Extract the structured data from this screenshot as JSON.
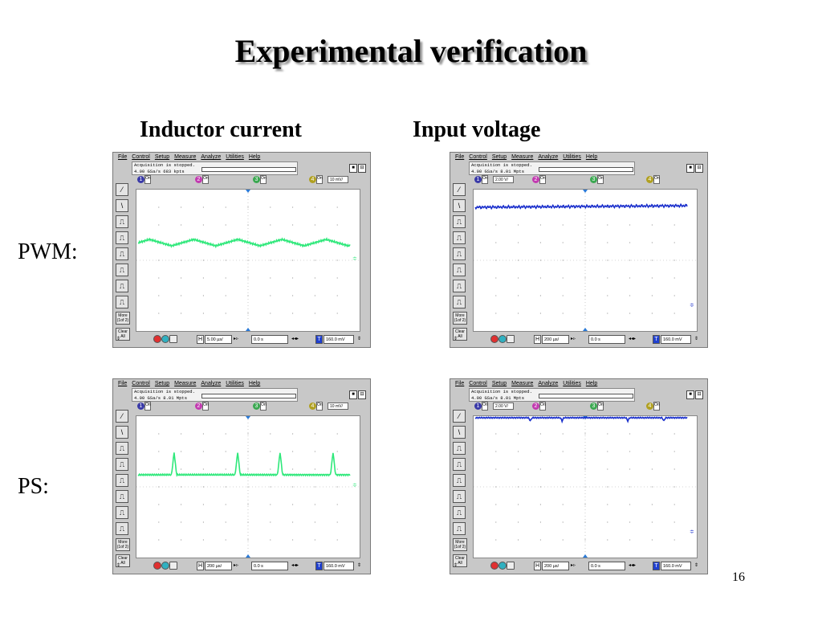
{
  "slide": {
    "title": "Experimental verification",
    "col_left": "Inductor current",
    "col_right": "Input voltage",
    "row_top": "PWM:",
    "row_bottom": "PS:",
    "page_number": "16"
  },
  "scope_ui": {
    "menu": [
      "File",
      "Control",
      "Setup",
      "Measure",
      "Analyze",
      "Utilities",
      "Help"
    ],
    "status_line1": "Acquisition is stopped.",
    "channel_labels": [
      "1",
      "2",
      "3",
      "4"
    ],
    "on_label": "On",
    "more_label": "More (1of 2)",
    "clear_label": "Clear All",
    "delay": "0.0 s",
    "trigger_level": "160.0 mV",
    "h_label": "H",
    "t_label": "T"
  },
  "colors": {
    "current_trace": "#2ee87a",
    "voltage_trace": "#1a2fcc",
    "ch1": "#3a3aa8",
    "ch2": "#c23ab0",
    "ch3": "#3aa850",
    "ch4": "#b0a020",
    "scope_bg": "#c8c8c8"
  },
  "scopes": [
    {
      "id": "pwm-current",
      "rate_line": "4.00 GSa/s   683 kpts",
      "active_channel": 4,
      "scale": "10 mV/",
      "timebase": "5.00 µs/",
      "trace_color": "#2ee87a",
      "waveform": "triangle ripple"
    },
    {
      "id": "pwm-voltage",
      "rate_line": "4.00 GSa/s   8.01 Mpts",
      "active_channel": 1,
      "scale": "2.00 V/",
      "timebase": "200 µs/",
      "trace_color": "#1a2fcc",
      "waveform": "flat with ripple"
    },
    {
      "id": "ps-current",
      "rate_line": "4.00 GSa/s   8.01 Mpts",
      "active_channel": 4,
      "scale": "10 mV/",
      "timebase": "200 µs/",
      "trace_color": "#2ee87a",
      "waveform": "flat with spikes"
    },
    {
      "id": "ps-voltage",
      "rate_line": "4.00 GSa/s   8.01 Mpts",
      "active_channel": 1,
      "scale": "2.00 V/",
      "timebase": "200 µs/",
      "trace_color": "#1a2fcc",
      "waveform": "flat with dips"
    }
  ]
}
